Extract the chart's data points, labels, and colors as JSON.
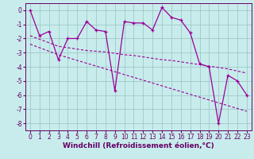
{
  "xlabel": "Windchill (Refroidissement éolien,°C)",
  "bg_color": "#c8ecec",
  "grid_color": "#a0c8c8",
  "line_color": "#990099",
  "x_data": [
    0,
    1,
    2,
    3,
    4,
    5,
    6,
    7,
    8,
    9,
    10,
    11,
    12,
    13,
    14,
    15,
    16,
    17,
    18,
    19,
    20,
    21,
    22,
    23
  ],
  "y_line1": [
    0.0,
    -1.8,
    -1.5,
    -3.5,
    -2.0,
    -2.0,
    -0.8,
    -1.4,
    -1.5,
    -5.7,
    -0.8,
    -0.9,
    -0.9,
    -1.4,
    0.2,
    -0.5,
    -0.7,
    -1.6,
    -3.8,
    -4.0,
    -8.0,
    -4.6,
    -5.0,
    -6.0
  ],
  "y_trend1": [
    -1.8,
    -2.05,
    -2.3,
    -2.55,
    -2.65,
    -2.75,
    -2.85,
    -2.9,
    -2.95,
    -3.05,
    -3.15,
    -3.2,
    -3.3,
    -3.4,
    -3.5,
    -3.55,
    -3.65,
    -3.75,
    -3.85,
    -3.95,
    -4.05,
    -4.15,
    -4.3,
    -4.45
  ],
  "y_trend2": [
    -2.4,
    -2.65,
    -2.9,
    -3.15,
    -3.35,
    -3.55,
    -3.75,
    -3.95,
    -4.15,
    -4.35,
    -4.55,
    -4.75,
    -4.95,
    -5.15,
    -5.35,
    -5.55,
    -5.75,
    -5.95,
    -6.15,
    -6.35,
    -6.55,
    -6.75,
    -6.95,
    -7.15
  ],
  "ylim": [
    -8.5,
    0.5
  ],
  "xlim": [
    -0.5,
    23.5
  ],
  "yticks": [
    0,
    -1,
    -2,
    -3,
    -4,
    -5,
    -6,
    -7,
    -8
  ],
  "xticks": [
    0,
    1,
    2,
    3,
    4,
    5,
    6,
    7,
    8,
    9,
    10,
    11,
    12,
    13,
    14,
    15,
    16,
    17,
    18,
    19,
    20,
    21,
    22,
    23
  ],
  "font_color": "#660066",
  "tick_fontsize": 5.5,
  "label_fontsize": 6.5,
  "figsize": [
    3.2,
    2.0
  ],
  "dpi": 100
}
